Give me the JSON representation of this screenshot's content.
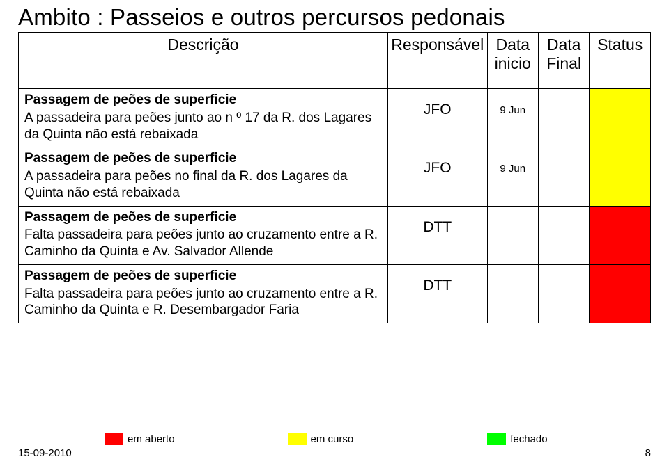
{
  "title": "Ambito : Passeios e outros percursos pedonais",
  "columns": {
    "desc": "Descrição",
    "resp": "Responsável",
    "inicio": "Data inicio",
    "final": "Data Final",
    "status": "Status"
  },
  "colors": {
    "aberto": "#ff0000",
    "curso": "#ffff00",
    "fechado": "#00ff00",
    "border": "#000000",
    "background": "#ffffff"
  },
  "rows": [
    {
      "section": "Passagem de peões de superficie",
      "body": "A  passadeira para peões junto ao n º 17 da R. dos Lagares da Quinta não está rebaixada",
      "resp": "JFO",
      "inicio": "9 Jun",
      "final": "",
      "status_color": "#ffff00"
    },
    {
      "section": "Passagem de peões de superficie",
      "body": "A  passadeira para peões no final da R. dos Lagares da Quinta não está rebaixada",
      "resp": "JFO",
      "inicio": "9 Jun",
      "final": "",
      "status_color": "#ffff00"
    },
    {
      "section": "Passagem de peões de superficie",
      "body": "Falta passadeira para peões junto ao cruzamento entre a R. Caminho da Quinta e Av. Salvador Allende",
      "resp": "DTT",
      "inicio": "",
      "final": "",
      "status_color": "#ff0000"
    },
    {
      "section": "Passagem de peões de superficie",
      "body": "Falta passadeira para peões junto ao cruzamento entre a R. Caminho da Quinta e R. Desembargador Faria",
      "resp": "DTT",
      "inicio": "",
      "final": "",
      "status_color": "#ff0000"
    }
  ],
  "legend": {
    "aberto": "em aberto",
    "curso": "em curso",
    "fechado": "fechado"
  },
  "footer": {
    "date": "15-09-2010",
    "page": "8"
  }
}
